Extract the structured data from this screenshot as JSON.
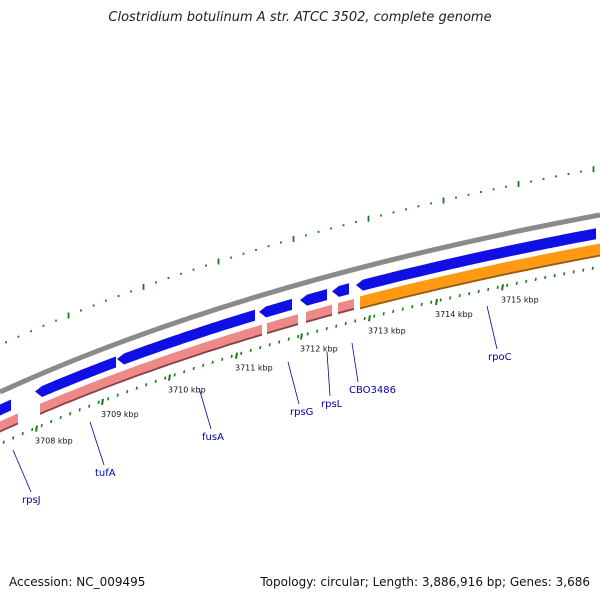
{
  "title": "Clostridium botulinum A str. ATCC 3502, complete genome",
  "footer": {
    "accession": "Accession: NC_009495",
    "summary": "Topology: circular; Length: 3,886,916 bp; Genes: 3,686"
  },
  "colors": {
    "backbone": "#8a8a8a",
    "forward_gene": "#1010e6",
    "reverse_rrna_gene": "#ef8888",
    "reverse_rpoc": "#ff9a12",
    "dots": "#1a7a1a",
    "label": "#0000aa"
  },
  "scale": {
    "unit": "kbp",
    "ticks": [
      {
        "label": "3708 kbp"
      },
      {
        "label": "3709 kbp"
      },
      {
        "label": "3710 kbp"
      },
      {
        "label": "3711 kbp"
      },
      {
        "label": "3712 kbp"
      },
      {
        "label": "3713 kbp"
      },
      {
        "label": "3714 kbp"
      },
      {
        "label": "3715 kbp"
      }
    ]
  },
  "genes": [
    {
      "name": "rpsJ"
    },
    {
      "name": "tufA"
    },
    {
      "name": "fusA"
    },
    {
      "name": "rpsG"
    },
    {
      "name": "rpsL"
    },
    {
      "name": "CBO3486"
    },
    {
      "name": "rpoC"
    }
  ]
}
